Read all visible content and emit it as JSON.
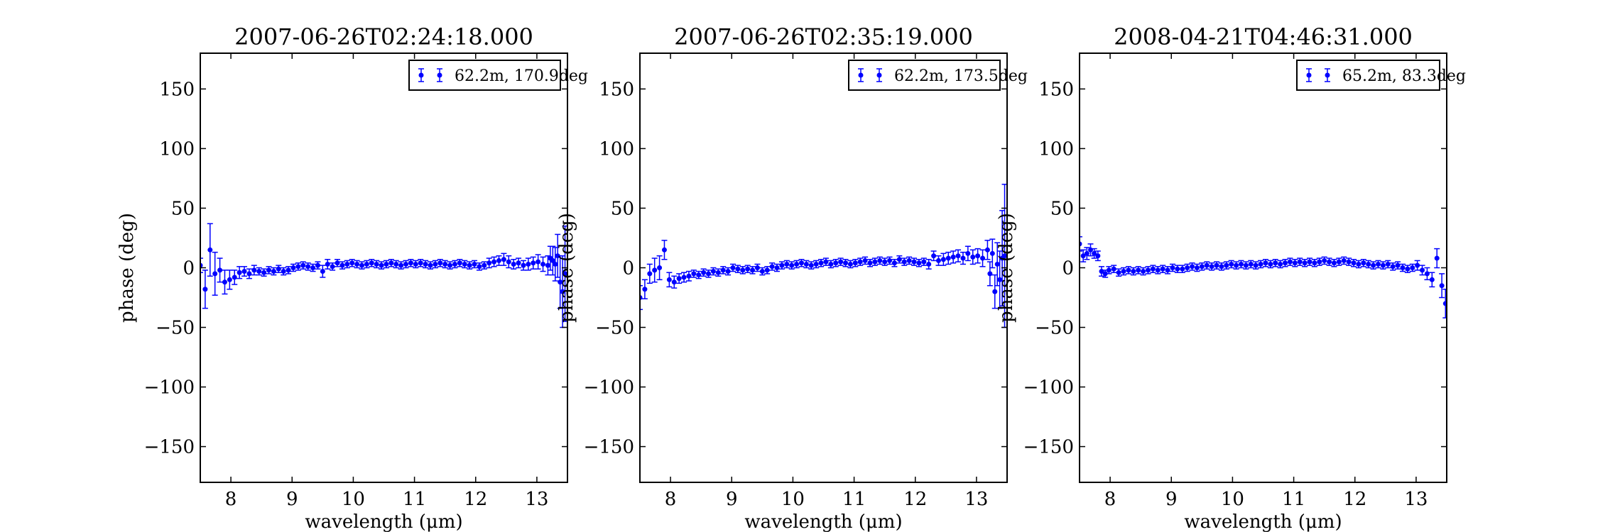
{
  "figure": {
    "xlabel": "wavelength (μm)",
    "ylabel": "phase (deg)",
    "series_color": "#0000ff"
  },
  "chart_data": [
    {
      "type": "scatter",
      "title": "2007-06-26T02:24:18.000",
      "xlabel": "wavelength (μm)",
      "ylabel": "phase (deg)",
      "xlim": [
        7.5,
        13.5
      ],
      "ylim": [
        -180,
        180
      ],
      "xticks": [
        8,
        9,
        10,
        11,
        12,
        13
      ],
      "yticks": [
        -150,
        -100,
        -50,
        0,
        50,
        100,
        150
      ],
      "legend": "62.2m, 170.9deg",
      "legend_position": "upper right",
      "grid": false,
      "series": [
        {
          "name": "62.2m, 170.9deg",
          "x": [
            7.5,
            7.58,
            7.66,
            7.74,
            7.82,
            7.9,
            7.98,
            8.06,
            8.14,
            8.22,
            8.3,
            8.38,
            8.46,
            8.54,
            8.62,
            8.7,
            8.78,
            8.86,
            8.94,
            9.02,
            9.1,
            9.18,
            9.26,
            9.34,
            9.42,
            9.5,
            9.58,
            9.66,
            9.74,
            9.82,
            9.9,
            9.98,
            10.06,
            10.14,
            10.22,
            10.3,
            10.38,
            10.46,
            10.54,
            10.62,
            10.7,
            10.78,
            10.86,
            10.94,
            11.02,
            11.1,
            11.18,
            11.26,
            11.34,
            11.42,
            11.5,
            11.58,
            11.66,
            11.74,
            11.82,
            11.9,
            11.98,
            12.06,
            12.14,
            12.22,
            12.3,
            12.38,
            12.46,
            12.54,
            12.62,
            12.7,
            12.78,
            12.86,
            12.94,
            13.02,
            13.1,
            13.18,
            13.22,
            13.26,
            13.3,
            13.34,
            13.38,
            13.42,
            13.46
          ],
          "y": [
            2,
            -18,
            15,
            -5,
            -2,
            -12,
            -10,
            -8,
            -4,
            -3,
            -5,
            -2,
            -3,
            -4,
            -2,
            -3,
            -1,
            -3,
            -2,
            0,
            1,
            2,
            1,
            0,
            2,
            -3,
            3,
            1,
            4,
            2,
            3,
            4,
            3,
            2,
            3,
            4,
            3,
            2,
            3,
            4,
            3,
            2,
            3,
            4,
            3,
            4,
            3,
            2,
            3,
            4,
            3,
            2,
            3,
            4,
            3,
            2,
            3,
            1,
            2,
            4,
            5,
            6,
            7,
            5,
            3,
            4,
            2,
            3,
            4,
            5,
            3,
            2,
            8,
            6,
            3,
            10,
            -12,
            -20,
            -5
          ],
          "err": [
            6,
            16,
            22,
            18,
            10,
            10,
            8,
            6,
            5,
            4,
            4,
            4,
            3,
            3,
            3,
            3,
            3,
            3,
            3,
            3,
            3,
            3,
            3,
            3,
            3,
            5,
            4,
            3,
            3,
            3,
            3,
            3,
            3,
            3,
            3,
            3,
            3,
            3,
            3,
            3,
            3,
            3,
            3,
            3,
            3,
            3,
            3,
            3,
            3,
            3,
            3,
            3,
            3,
            3,
            3,
            3,
            3,
            3,
            3,
            4,
            4,
            4,
            5,
            5,
            4,
            4,
            4,
            5,
            5,
            6,
            6,
            8,
            10,
            12,
            14,
            18,
            22,
            30,
            40
          ]
        }
      ]
    },
    {
      "type": "scatter",
      "title": "2007-06-26T02:35:19.000",
      "xlabel": "wavelength (μm)",
      "ylabel": "phase (deg)",
      "xlim": [
        7.5,
        13.5
      ],
      "ylim": [
        -180,
        180
      ],
      "xticks": [
        8,
        9,
        10,
        11,
        12,
        13
      ],
      "yticks": [
        -150,
        -100,
        -50,
        0,
        50,
        100,
        150
      ],
      "legend": "62.2m, 173.5deg",
      "legend_position": "upper right",
      "grid": false,
      "series": [
        {
          "name": "62.2m, 173.5deg",
          "x": [
            7.5,
            7.58,
            7.66,
            7.74,
            7.82,
            7.9,
            7.98,
            8.06,
            8.14,
            8.22,
            8.3,
            8.38,
            8.46,
            8.54,
            8.62,
            8.7,
            8.78,
            8.86,
            8.94,
            9.02,
            9.1,
            9.18,
            9.26,
            9.34,
            9.42,
            9.5,
            9.58,
            9.66,
            9.74,
            9.82,
            9.9,
            9.98,
            10.06,
            10.14,
            10.22,
            10.3,
            10.38,
            10.46,
            10.54,
            10.62,
            10.7,
            10.78,
            10.86,
            10.94,
            11.02,
            11.1,
            11.18,
            11.26,
            11.34,
            11.42,
            11.5,
            11.58,
            11.66,
            11.74,
            11.82,
            11.9,
            11.98,
            12.06,
            12.14,
            12.22,
            12.3,
            12.38,
            12.46,
            12.54,
            12.62,
            12.7,
            12.78,
            12.86,
            12.94,
            13.02,
            13.1,
            13.18,
            13.22,
            13.26,
            13.3,
            13.34,
            13.38,
            13.42,
            13.46
          ],
          "y": [
            -25,
            -18,
            -5,
            -2,
            0,
            15,
            -10,
            -12,
            -9,
            -8,
            -7,
            -5,
            -6,
            -4,
            -5,
            -3,
            -4,
            -2,
            -3,
            0,
            -1,
            -2,
            -1,
            -2,
            0,
            -3,
            -2,
            1,
            0,
            2,
            3,
            2,
            3,
            4,
            3,
            2,
            3,
            4,
            5,
            3,
            4,
            5,
            4,
            3,
            4,
            5,
            6,
            4,
            5,
            6,
            5,
            6,
            4,
            7,
            5,
            6,
            5,
            4,
            5,
            3,
            10,
            6,
            7,
            8,
            9,
            10,
            8,
            12,
            9,
            10,
            8,
            15,
            -5,
            12,
            -20,
            3,
            -10,
            8,
            10
          ],
          "err": [
            10,
            8,
            8,
            10,
            10,
            8,
            6,
            5,
            4,
            4,
            4,
            3,
            3,
            3,
            3,
            3,
            3,
            3,
            3,
            3,
            3,
            3,
            3,
            3,
            3,
            3,
            3,
            3,
            3,
            3,
            3,
            3,
            3,
            3,
            3,
            3,
            3,
            3,
            3,
            3,
            3,
            3,
            3,
            3,
            3,
            3,
            3,
            3,
            3,
            3,
            3,
            3,
            3,
            3,
            3,
            3,
            3,
            3,
            3,
            4,
            4,
            4,
            5,
            5,
            5,
            5,
            5,
            6,
            6,
            6,
            7,
            8,
            10,
            12,
            14,
            18,
            24,
            40,
            60
          ]
        }
      ]
    },
    {
      "type": "scatter",
      "title": "2008-04-21T04:46:31.000",
      "xlabel": "wavelength (μm)",
      "ylabel": "phase (deg)",
      "xlim": [
        7.5,
        13.5
      ],
      "ylim": [
        -180,
        180
      ],
      "xticks": [
        8,
        9,
        10,
        11,
        12,
        13
      ],
      "yticks": [
        -150,
        -100,
        -50,
        0,
        50,
        100,
        150
      ],
      "legend": "65.2m, 83.3deg",
      "legend_position": "upper right",
      "grid": false,
      "series": [
        {
          "name": "65.2m, 83.3deg",
          "x": [
            7.5,
            7.56,
            7.62,
            7.68,
            7.74,
            7.8,
            7.86,
            7.92,
            7.98,
            8.06,
            8.14,
            8.22,
            8.3,
            8.38,
            8.46,
            8.54,
            8.62,
            8.7,
            8.78,
            8.86,
            8.94,
            9.02,
            9.1,
            9.18,
            9.26,
            9.34,
            9.42,
            9.5,
            9.58,
            9.66,
            9.74,
            9.82,
            9.9,
            9.98,
            10.06,
            10.14,
            10.22,
            10.3,
            10.38,
            10.46,
            10.54,
            10.62,
            10.7,
            10.78,
            10.86,
            10.94,
            11.02,
            11.1,
            11.18,
            11.26,
            11.34,
            11.42,
            11.5,
            11.58,
            11.66,
            11.74,
            11.82,
            11.9,
            11.98,
            12.06,
            12.14,
            12.22,
            12.3,
            12.38,
            12.46,
            12.54,
            12.62,
            12.7,
            12.78,
            12.86,
            12.94,
            13.02,
            13.1,
            13.18,
            13.26,
            13.34,
            13.42,
            13.48
          ],
          "y": [
            20,
            10,
            12,
            15,
            12,
            10,
            -3,
            -5,
            -2,
            -1,
            -4,
            -3,
            -2,
            -3,
            -2,
            -3,
            -2,
            -1,
            -2,
            -1,
            -2,
            0,
            -1,
            -1,
            0,
            1,
            0,
            1,
            2,
            1,
            2,
            1,
            2,
            3,
            2,
            3,
            2,
            3,
            2,
            3,
            4,
            3,
            4,
            3,
            4,
            5,
            4,
            5,
            4,
            5,
            4,
            5,
            6,
            5,
            4,
            5,
            6,
            5,
            4,
            3,
            4,
            3,
            2,
            3,
            2,
            3,
            1,
            2,
            0,
            -1,
            0,
            2,
            -2,
            -5,
            -10,
            8,
            -15,
            -30
          ],
          "err": [
            6,
            5,
            5,
            5,
            4,
            4,
            4,
            3,
            3,
            3,
            3,
            3,
            3,
            3,
            3,
            3,
            3,
            3,
            3,
            3,
            3,
            3,
            3,
            3,
            3,
            3,
            3,
            3,
            3,
            3,
            3,
            3,
            3,
            3,
            3,
            3,
            3,
            3,
            3,
            3,
            3,
            3,
            3,
            3,
            3,
            3,
            3,
            3,
            3,
            3,
            3,
            3,
            3,
            3,
            3,
            3,
            3,
            3,
            3,
            3,
            3,
            3,
            3,
            3,
            3,
            3,
            3,
            3,
            3,
            3,
            3,
            4,
            4,
            5,
            6,
            8,
            10,
            12
          ]
        }
      ]
    }
  ]
}
